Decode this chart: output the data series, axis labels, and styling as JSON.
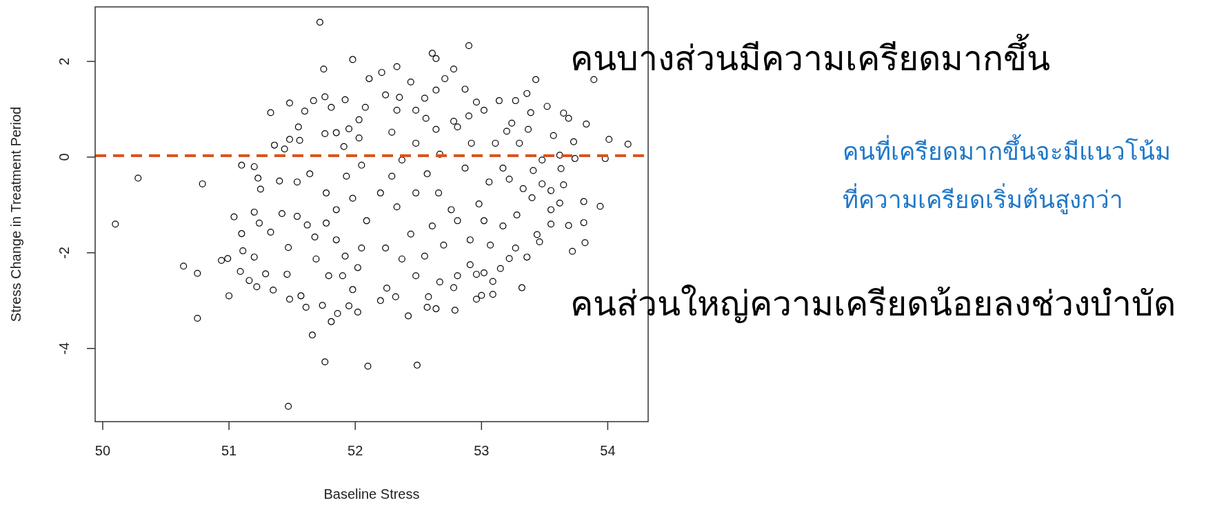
{
  "chart_data": {
    "type": "scatter",
    "xlabel": "Baseline Stress",
    "ylabel": "Stress Change in Treatment Period",
    "xlim": [
      49.94,
      54.32
    ],
    "ylim": [
      -5.53,
      3.14
    ],
    "xticks": [
      50,
      51,
      52,
      53,
      54
    ],
    "yticks": [
      -4,
      -2,
      0,
      2
    ],
    "marker": "circle",
    "grid": false,
    "ref_lines": [
      {
        "axis": "y",
        "value": 0.03,
        "color": "#d9541e",
        "line_style": "dashed"
      }
    ],
    "annotations": [
      "คนบางส่วนมีความเครียดมากขึ้น",
      "คนส่วนใหญ่ความเครียดน้อยลงช่วงบำบัด",
      "คนที่เครียดมากขึ้นจะมีแนวโน้ม\nที่ความเครียดเริ่มต้นสูงกว่า"
    ],
    "series": [
      {
        "color": "#000000",
        "x": [
          50.1,
          50.28,
          50.79,
          50.64,
          50.75,
          50.75,
          50.94,
          50.99,
          51.0,
          51.47,
          51.66,
          51.76,
          52.1,
          51.72,
          51.98,
          51.75,
          51.33,
          51.48,
          51.6,
          51.67,
          51.76,
          51.81,
          51.92,
          51.36,
          51.44,
          51.48,
          51.56,
          51.55,
          51.76,
          51.85,
          51.95,
          51.91,
          51.1,
          51.2,
          51.23,
          51.25,
          51.04,
          51.1,
          51.11,
          51.2,
          51.09,
          51.16,
          51.22,
          51.29,
          51.35,
          51.46,
          51.48,
          51.57,
          51.61,
          51.74,
          51.81,
          51.86,
          51.95,
          52.02,
          51.2,
          51.24,
          51.33,
          51.4,
          51.42,
          51.47,
          51.54,
          51.54,
          51.62,
          51.64,
          51.69,
          51.68,
          51.79,
          51.9,
          51.98,
          51.77,
          51.85,
          51.98,
          52.05,
          51.93,
          51.77,
          51.85,
          52.05,
          52.09,
          51.92,
          52.02,
          52.08,
          52.11,
          52.03,
          52.03,
          52.9,
          52.61,
          52.64,
          52.33,
          52.21,
          52.78,
          52.44,
          52.71,
          52.87,
          52.64,
          52.24,
          52.35,
          52.55,
          53.14,
          52.96,
          53.27,
          53.36,
          53.43,
          53.89,
          53.52,
          53.65,
          53.69,
          53.83,
          53.39,
          53.02,
          52.48,
          52.33,
          52.56,
          52.78,
          52.9,
          53.24,
          53.2,
          53.37,
          53.57,
          53.73,
          54.01,
          54.16,
          53.98,
          53.74,
          53.62,
          53.48,
          53.3,
          53.11,
          53.41,
          53.63,
          53.48,
          53.65,
          53.55,
          53.81,
          53.94,
          53.62,
          53.55,
          53.4,
          53.33,
          53.22,
          53.55,
          53.69,
          53.81,
          53.82,
          53.72,
          53.44,
          53.46,
          53.36,
          53.27,
          53.32,
          53.22,
          53.09,
          53.0,
          52.96,
          53.02,
          53.09,
          52.79,
          52.64,
          52.57,
          52.42,
          52.49,
          52.32,
          52.58,
          52.78,
          52.67,
          52.25,
          52.2,
          52.48,
          52.81,
          52.96,
          52.91,
          53.15,
          53.07,
          52.91,
          52.7,
          52.55,
          52.37,
          52.24,
          52.44,
          52.61,
          52.81,
          53.02,
          53.17,
          53.28,
          52.98,
          52.76,
          52.66,
          52.48,
          52.33,
          52.2,
          52.29,
          52.57,
          52.87,
          53.06,
          53.17,
          52.37,
          52.67,
          52.48,
          52.92,
          52.29,
          52.64,
          52.81
        ],
        "values": [
          -1.4,
          -0.44,
          -0.56,
          -2.28,
          -2.43,
          -3.37,
          -2.16,
          -2.12,
          -2.9,
          -5.21,
          -3.72,
          -4.28,
          -4.37,
          2.82,
          2.04,
          1.84,
          0.93,
          1.13,
          0.96,
          1.18,
          1.26,
          1.04,
          1.2,
          0.25,
          0.17,
          0.37,
          0.35,
          0.63,
          0.49,
          0.51,
          0.59,
          0.22,
          -0.17,
          -0.2,
          -0.44,
          -0.67,
          -1.25,
          -1.6,
          -1.96,
          -2.09,
          -2.39,
          -2.58,
          -2.71,
          -2.44,
          -2.78,
          -2.45,
          -2.97,
          -2.9,
          -3.14,
          -3.1,
          -3.44,
          -3.27,
          -3.11,
          -3.24,
          -1.15,
          -1.38,
          -1.57,
          -0.5,
          -1.18,
          -1.89,
          -1.24,
          -0.52,
          -1.42,
          -0.35,
          -2.13,
          -1.67,
          -2.48,
          -2.48,
          -2.77,
          -0.75,
          -1.1,
          -0.86,
          -0.17,
          -0.4,
          -1.38,
          -1.73,
          -1.9,
          -1.33,
          -2.07,
          -2.31,
          1.04,
          1.64,
          0.78,
          0.4,
          2.33,
          2.17,
          2.06,
          1.89,
          1.77,
          1.84,
          1.57,
          1.64,
          1.42,
          1.4,
          1.3,
          1.25,
          1.23,
          1.18,
          1.15,
          1.18,
          1.33,
          1.62,
          1.62,
          1.06,
          0.92,
          0.81,
          0.69,
          0.93,
          0.98,
          0.98,
          0.98,
          0.81,
          0.75,
          0.86,
          0.71,
          0.54,
          0.58,
          0.45,
          0.32,
          0.37,
          0.27,
          -0.03,
          -0.03,
          0.04,
          -0.06,
          0.29,
          0.29,
          -0.28,
          -0.24,
          -0.56,
          -0.58,
          -0.7,
          -0.93,
          -1.03,
          -0.96,
          -1.1,
          -0.85,
          -0.66,
          -0.46,
          -1.4,
          -1.43,
          -1.37,
          -1.79,
          -1.97,
          -1.62,
          -1.77,
          -2.09,
          -1.9,
          -2.73,
          -2.12,
          -2.87,
          -2.89,
          -2.97,
          -2.42,
          -2.6,
          -3.2,
          -3.17,
          -3.14,
          -3.32,
          -4.35,
          -2.92,
          -2.92,
          -2.73,
          -2.61,
          -2.74,
          -3.0,
          -2.48,
          -2.48,
          -2.45,
          -2.25,
          -2.33,
          -1.84,
          -1.73,
          -1.84,
          -2.07,
          -2.13,
          -1.9,
          -1.61,
          -1.44,
          -1.33,
          -1.33,
          -1.44,
          -1.21,
          -0.98,
          -1.1,
          -0.75,
          -0.75,
          -1.04,
          -0.75,
          -0.4,
          -0.35,
          -0.23,
          -0.52,
          -0.23,
          -0.06,
          0.06,
          0.29,
          0.29,
          0.52,
          0.58,
          0.63
        ]
      }
    ]
  }
}
